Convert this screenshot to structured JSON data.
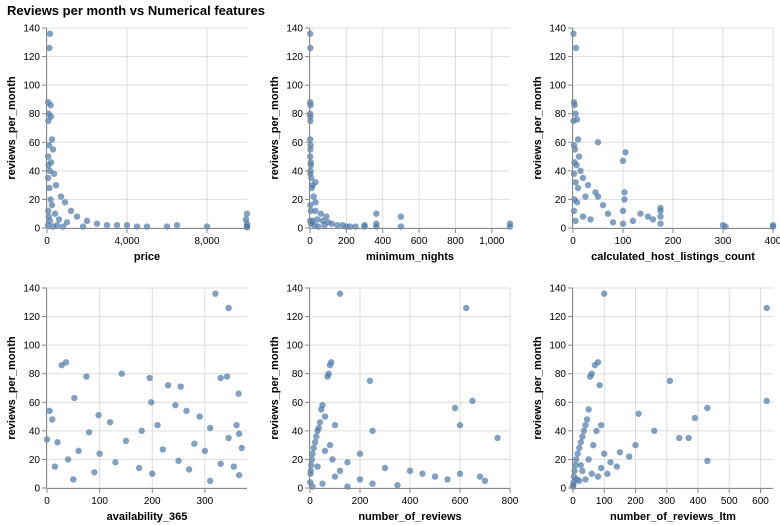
{
  "title": "Reviews per month vs Numerical features",
  "colors": {
    "point": "#4c78a8",
    "grid": "#dddddd",
    "axis": "#888888"
  },
  "chart_data": [
    {
      "type": "scatter",
      "xlabel": "price",
      "ylabel": "reviews_per_month",
      "xlim": [
        0,
        10000
      ],
      "ylim": [
        0,
        140
      ],
      "xticks": [
        0,
        4000,
        8000
      ],
      "xtick_labels": [
        "0",
        "4,000",
        "8,000"
      ],
      "yticks": [
        0,
        20,
        40,
        60,
        80,
        100,
        120,
        140
      ],
      "points": [
        [
          150,
          136
        ],
        [
          120,
          126
        ],
        [
          60,
          88
        ],
        [
          180,
          86
        ],
        [
          90,
          80
        ],
        [
          200,
          78
        ],
        [
          70,
          75
        ],
        [
          250,
          62
        ],
        [
          100,
          58
        ],
        [
          300,
          55
        ],
        [
          60,
          50
        ],
        [
          200,
          46
        ],
        [
          80,
          44
        ],
        [
          140,
          40
        ],
        [
          350,
          38
        ],
        [
          60,
          35
        ],
        [
          450,
          30
        ],
        [
          120,
          28
        ],
        [
          700,
          22
        ],
        [
          180,
          20
        ],
        [
          900,
          18
        ],
        [
          250,
          16
        ],
        [
          1200,
          12
        ],
        [
          60,
          12
        ],
        [
          400,
          10
        ],
        [
          1500,
          8
        ],
        [
          90,
          8
        ],
        [
          600,
          6
        ],
        [
          2000,
          5
        ],
        [
          150,
          5
        ],
        [
          1000,
          4
        ],
        [
          2500,
          3
        ],
        [
          3000,
          2
        ],
        [
          3500,
          2
        ],
        [
          4000,
          2
        ],
        [
          4500,
          1
        ],
        [
          5000,
          1
        ],
        [
          6000,
          1
        ],
        [
          6500,
          2
        ],
        [
          8000,
          1
        ],
        [
          10000,
          10
        ],
        [
          10000,
          3
        ],
        [
          10000,
          1
        ],
        [
          10000,
          0.5
        ],
        [
          9950,
          6
        ],
        [
          500,
          2
        ],
        [
          300,
          1
        ],
        [
          800,
          1
        ],
        [
          50,
          2
        ],
        [
          1800,
          1
        ]
      ]
    },
    {
      "type": "scatter",
      "xlabel": "minimum_nights",
      "ylabel": "reviews_per_month",
      "xlim": [
        0,
        1100
      ],
      "ylim": [
        0,
        140
      ],
      "xticks": [
        0,
        200,
        400,
        600,
        800,
        1000
      ],
      "xtick_labels": [
        "0",
        "200",
        "400",
        "600",
        "800",
        "1,000"
      ],
      "yticks": [
        0,
        20,
        40,
        60,
        80,
        100,
        120,
        140
      ],
      "points": [
        [
          1,
          136
        ],
        [
          2,
          126
        ],
        [
          1,
          88
        ],
        [
          3,
          86
        ],
        [
          1,
          80
        ],
        [
          2,
          78
        ],
        [
          2,
          75
        ],
        [
          1,
          62
        ],
        [
          3,
          58
        ],
        [
          2,
          55
        ],
        [
          1,
          50
        ],
        [
          4,
          46
        ],
        [
          5,
          44
        ],
        [
          3,
          40
        ],
        [
          2,
          38
        ],
        [
          7,
          35
        ],
        [
          14,
          30
        ],
        [
          30,
          32
        ],
        [
          10,
          28
        ],
        [
          20,
          22
        ],
        [
          30,
          18
        ],
        [
          2,
          16
        ],
        [
          60,
          10
        ],
        [
          90,
          8
        ],
        [
          5,
          12
        ],
        [
          30,
          12
        ],
        [
          100,
          4
        ],
        [
          120,
          3
        ],
        [
          150,
          2
        ],
        [
          180,
          2
        ],
        [
          200,
          1
        ],
        [
          250,
          1
        ],
        [
          300,
          2
        ],
        [
          365,
          10
        ],
        [
          365,
          3
        ],
        [
          365,
          1
        ],
        [
          500,
          8
        ],
        [
          500,
          1
        ],
        [
          1100,
          3
        ],
        [
          1100,
          1
        ],
        [
          40,
          6
        ],
        [
          70,
          5
        ],
        [
          300,
          1
        ],
        [
          1,
          5
        ],
        [
          7,
          3
        ],
        [
          25,
          2
        ],
        [
          45,
          1
        ],
        [
          14,
          5
        ],
        [
          80,
          2
        ],
        [
          220,
          1
        ]
      ]
    },
    {
      "type": "scatter",
      "xlabel": "calculated_host_listings_count",
      "ylabel": "reviews_per_month",
      "xlim": [
        0,
        400
      ],
      "ylim": [
        0,
        140
      ],
      "xticks": [
        0,
        100,
        200,
        300,
        400
      ],
      "xtick_labels": [
        "0",
        "100",
        "200",
        "300",
        "400"
      ],
      "yticks": [
        0,
        20,
        40,
        60,
        80,
        100,
        120,
        140
      ],
      "points": [
        [
          1,
          136
        ],
        [
          6,
          126
        ],
        [
          2,
          88
        ],
        [
          3,
          86
        ],
        [
          5,
          80
        ],
        [
          8,
          76
        ],
        [
          1,
          75
        ],
        [
          10,
          62
        ],
        [
          2,
          58
        ],
        [
          50,
          60
        ],
        [
          4,
          55
        ],
        [
          105,
          53
        ],
        [
          12,
          50
        ],
        [
          3,
          46
        ],
        [
          100,
          47
        ],
        [
          7,
          44
        ],
        [
          15,
          40
        ],
        [
          2,
          38
        ],
        [
          20,
          35
        ],
        [
          5,
          32
        ],
        [
          30,
          30
        ],
        [
          10,
          28
        ],
        [
          45,
          25
        ],
        [
          103,
          25
        ],
        [
          50,
          22
        ],
        [
          25,
          22
        ],
        [
          103,
          20
        ],
        [
          8,
          18
        ],
        [
          60,
          16
        ],
        [
          175,
          14
        ],
        [
          175,
          12
        ],
        [
          100,
          12
        ],
        [
          70,
          10
        ],
        [
          135,
          10
        ],
        [
          150,
          8
        ],
        [
          175,
          8
        ],
        [
          160,
          6
        ],
        [
          80,
          4
        ],
        [
          300,
          2
        ],
        [
          305,
          1
        ],
        [
          400,
          2
        ],
        [
          400,
          1
        ],
        [
          2,
          12
        ],
        [
          5,
          5
        ],
        [
          20,
          8
        ],
        [
          35,
          6
        ],
        [
          100,
          3
        ],
        [
          175,
          3
        ],
        [
          120,
          5
        ],
        [
          3,
          20
        ]
      ]
    },
    {
      "type": "scatter",
      "xlabel": "availability_365",
      "ylabel": "reviews_per_month",
      "xlim": [
        0,
        380
      ],
      "ylim": [
        0,
        140
      ],
      "xticks": [
        0,
        100,
        200,
        300
      ],
      "xtick_labels": [
        "0",
        "100",
        "200",
        "300"
      ],
      "yticks": [
        0,
        20,
        40,
        60,
        80,
        100,
        120,
        140
      ],
      "points": [
        [
          320,
          136
        ],
        [
          345,
          126
        ],
        [
          28,
          86
        ],
        [
          36,
          88
        ],
        [
          75,
          78
        ],
        [
          142,
          80
        ],
        [
          195,
          77
        ],
        [
          230,
          72
        ],
        [
          254,
          71
        ],
        [
          342,
          78
        ],
        [
          330,
          77
        ],
        [
          364,
          66
        ],
        [
          52,
          63
        ],
        [
          98,
          51
        ],
        [
          198,
          60
        ],
        [
          244,
          58
        ],
        [
          265,
          54
        ],
        [
          290,
          50
        ],
        [
          5,
          54
        ],
        [
          10,
          48
        ],
        [
          120,
          46
        ],
        [
          210,
          44
        ],
        [
          180,
          40
        ],
        [
          80,
          39
        ],
        [
          310,
          42
        ],
        [
          360,
          44
        ],
        [
          0,
          34
        ],
        [
          20,
          32
        ],
        [
          150,
          33
        ],
        [
          280,
          31
        ],
        [
          345,
          35
        ],
        [
          365,
          38
        ],
        [
          60,
          26
        ],
        [
          100,
          24
        ],
        [
          220,
          27
        ],
        [
          300,
          26
        ],
        [
          370,
          28
        ],
        [
          40,
          20
        ],
        [
          130,
          18
        ],
        [
          250,
          19
        ],
        [
          330,
          17
        ],
        [
          15,
          15
        ],
        [
          175,
          14
        ],
        [
          270,
          13
        ],
        [
          355,
          15
        ],
        [
          90,
          11
        ],
        [
          200,
          10
        ],
        [
          365,
          9
        ],
        [
          50,
          6
        ],
        [
          310,
          5
        ]
      ]
    },
    {
      "type": "scatter",
      "xlabel": "number_of_reviews",
      "ylabel": "reviews_per_month",
      "xlim": [
        0,
        800
      ],
      "ylim": [
        0,
        140
      ],
      "xticks": [
        0,
        200,
        400,
        600,
        800
      ],
      "xtick_labels": [
        "0",
        "200",
        "400",
        "600",
        "800"
      ],
      "yticks": [
        0,
        20,
        40,
        60,
        80,
        100,
        120,
        140
      ],
      "points": [
        [
          120,
          136
        ],
        [
          625,
          126
        ],
        [
          85,
          88
        ],
        [
          80,
          86
        ],
        [
          75,
          80
        ],
        [
          70,
          78
        ],
        [
          240,
          75
        ],
        [
          650,
          61
        ],
        [
          50,
          58
        ],
        [
          580,
          56
        ],
        [
          45,
          55
        ],
        [
          60,
          50
        ],
        [
          40,
          46
        ],
        [
          100,
          44
        ],
        [
          600,
          44
        ],
        [
          35,
          42
        ],
        [
          30,
          40
        ],
        [
          250,
          40
        ],
        [
          25,
          36
        ],
        [
          750,
          35
        ],
        [
          20,
          32
        ],
        [
          80,
          30
        ],
        [
          15,
          28
        ],
        [
          60,
          26
        ],
        [
          10,
          24
        ],
        [
          200,
          24
        ],
        [
          8,
          20
        ],
        [
          150,
          18
        ],
        [
          5,
          16
        ],
        [
          300,
          14
        ],
        [
          3,
          12
        ],
        [
          400,
          12
        ],
        [
          2,
          10
        ],
        [
          450,
          10
        ],
        [
          100,
          8
        ],
        [
          500,
          8
        ],
        [
          200,
          6
        ],
        [
          550,
          6
        ],
        [
          700,
          5
        ],
        [
          1,
          4
        ],
        [
          50,
          3
        ],
        [
          250,
          3
        ],
        [
          350,
          2
        ],
        [
          150,
          1
        ],
        [
          10,
          1
        ],
        [
          600,
          10
        ],
        [
          680,
          8
        ],
        [
          120,
          12
        ],
        [
          30,
          15
        ],
        [
          90,
          20
        ]
      ]
    },
    {
      "type": "scatter",
      "xlabel": "number_of_reviews_ltm",
      "ylabel": "reviews_per_month",
      "xlim": [
        0,
        640
      ],
      "ylim": [
        0,
        140
      ],
      "xticks": [
        0,
        100,
        200,
        300,
        400,
        500,
        600
      ],
      "xtick_labels": [
        "0",
        "100",
        "200",
        "300",
        "400",
        "500",
        "600"
      ],
      "yticks": [
        0,
        20,
        40,
        60,
        80,
        100,
        120,
        140
      ],
      "points": [
        [
          100,
          136
        ],
        [
          620,
          126
        ],
        [
          80,
          88
        ],
        [
          70,
          86
        ],
        [
          60,
          80
        ],
        [
          55,
          78
        ],
        [
          310,
          75
        ],
        [
          85,
          72
        ],
        [
          620,
          61
        ],
        [
          430,
          56
        ],
        [
          50,
          55
        ],
        [
          390,
          49
        ],
        [
          210,
          52
        ],
        [
          45,
          48
        ],
        [
          40,
          44
        ],
        [
          35,
          40
        ],
        [
          260,
          40
        ],
        [
          340,
          35
        ],
        [
          370,
          35
        ],
        [
          30,
          36
        ],
        [
          25,
          32
        ],
        [
          200,
          30
        ],
        [
          20,
          28
        ],
        [
          150,
          25
        ],
        [
          15,
          24
        ],
        [
          430,
          19
        ],
        [
          10,
          20
        ],
        [
          120,
          18
        ],
        [
          8,
          16
        ],
        [
          90,
          14
        ],
        [
          5,
          12
        ],
        [
          60,
          10
        ],
        [
          3,
          8
        ],
        [
          40,
          6
        ],
        [
          2,
          4
        ],
        [
          1,
          2
        ],
        [
          0,
          1
        ],
        [
          20,
          5
        ],
        [
          80,
          8
        ],
        [
          110,
          10
        ],
        [
          30,
          12
        ],
        [
          140,
          15
        ],
        [
          50,
          20
        ],
        [
          100,
          24
        ],
        [
          65,
          30
        ],
        [
          75,
          40
        ],
        [
          90,
          44
        ],
        [
          25,
          16
        ],
        [
          12,
          6
        ],
        [
          180,
          22
        ]
      ]
    }
  ]
}
